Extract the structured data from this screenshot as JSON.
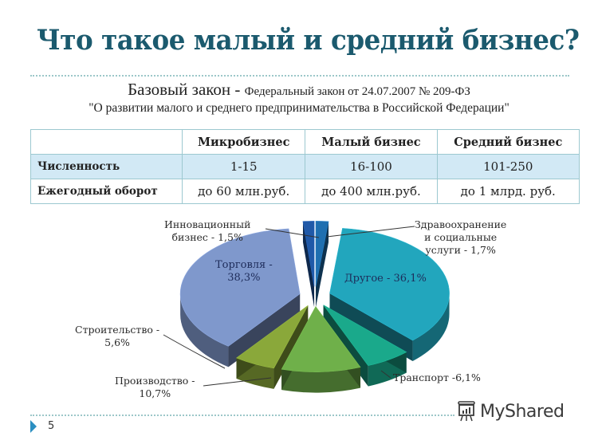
{
  "slide": {
    "title": "Что такое малый и средний бизнес?",
    "law_bold": "Базовый закон - ",
    "law_rest": "Федеральный закон от 24.07.2007 № 209-ФЗ",
    "law_title": "\"О развитии малого и среднего предпринимательства в Российской Федерации\"",
    "page_number": "5",
    "watermark": "MyShared"
  },
  "table": {
    "headers": [
      "",
      "Микробизнес",
      "Малый бизнес",
      "Средний бизнес"
    ],
    "rows": [
      {
        "label": "Численность",
        "values": [
          "1-15",
          "16-100",
          "101-250"
        ]
      },
      {
        "label": "Ежегодный оборот",
        "values": [
          "до 60 млн.руб.",
          "до 400 млн.руб.",
          "до 1 млрд. руб."
        ]
      }
    ]
  },
  "chart_data": {
    "type": "pie",
    "title": "",
    "style": "3d-exploded",
    "categories": [
      "Здравоохранение и социальные услуги",
      "Другое",
      "Транспорт",
      "Производство",
      "Строительство",
      "Торговля",
      "Инновационный бизнес"
    ],
    "values": [
      1.7,
      36.1,
      6.1,
      10.7,
      5.6,
      38.3,
      1.5
    ],
    "unit": "%",
    "colors": [
      "#1f6fb0",
      "#22a6bd",
      "#1aa98b",
      "#6fb04a",
      "#8aa83a",
      "#7f98cc",
      "#2059a8"
    ],
    "labels": {
      "health": [
        "Здравоохранение",
        "и социальные",
        "услуги - 1,7%"
      ],
      "other": "Другое - 36,1%",
      "transport": "Транспорт -6,1%",
      "production": [
        "Производство -",
        "10,7%"
      ],
      "construction": [
        "Строительство -",
        "5,6%"
      ],
      "trade": [
        "Торговля -",
        "38,3%"
      ],
      "innovation": [
        "Инновационный",
        "бизнес - 1,5%"
      ]
    },
    "legend": "none (leader-line labels)"
  }
}
